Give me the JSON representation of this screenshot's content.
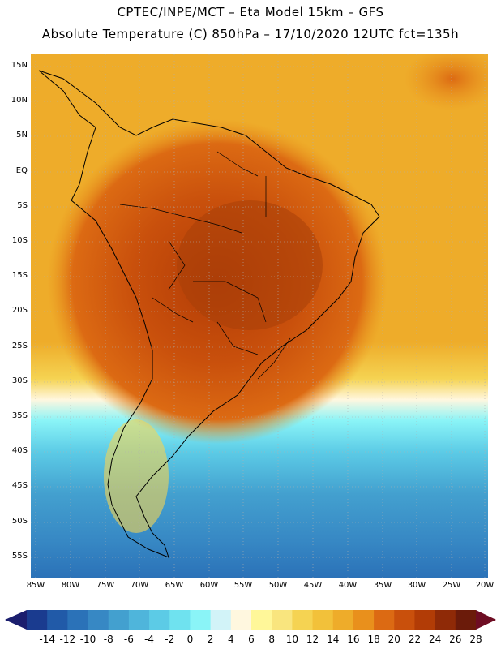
{
  "header": {
    "title_line1": "CPTEC/INPE/MCT –  Eta Model 15km – GFS",
    "title_line2": "Absolute Temperature (C) 850hPa – 17/10/2020 12UTC fct=135h"
  },
  "map": {
    "lat_labels": [
      "15N",
      "10N",
      "5N",
      "EQ",
      "5S",
      "10S",
      "15S",
      "20S",
      "25S",
      "30S",
      "35S",
      "40S",
      "45S",
      "50S",
      "55S"
    ],
    "lon_labels": [
      "85W",
      "80W",
      "75W",
      "70W",
      "65W",
      "60W",
      "55W",
      "50W",
      "45W",
      "40W",
      "35W",
      "30W",
      "25W",
      "20W"
    ]
  },
  "colorbar": {
    "labels": [
      "-14",
      "-12",
      "-10",
      "-8",
      "-6",
      "-4",
      "-2",
      "0",
      "2",
      "4",
      "6",
      "8",
      "10",
      "12",
      "14",
      "16",
      "18",
      "20",
      "22",
      "24",
      "26",
      "28"
    ],
    "colors": [
      "#1a3b8f",
      "#215aa8",
      "#2b72b8",
      "#3788c4",
      "#43a0cf",
      "#4fb5db",
      "#5ccbe6",
      "#6fe2ef",
      "#8af4f7",
      "#d2f3f8",
      "#fff7df",
      "#fff799",
      "#f9e57e",
      "#f5d352",
      "#f2c13a",
      "#eeac2a",
      "#e9901c",
      "#dc6a13",
      "#c9500c",
      "#b23c06",
      "#8f2a07",
      "#6b1b0a"
    ],
    "low_arrow_color": "#1b1e6e",
    "high_arrow_color": "#6e0d23"
  }
}
